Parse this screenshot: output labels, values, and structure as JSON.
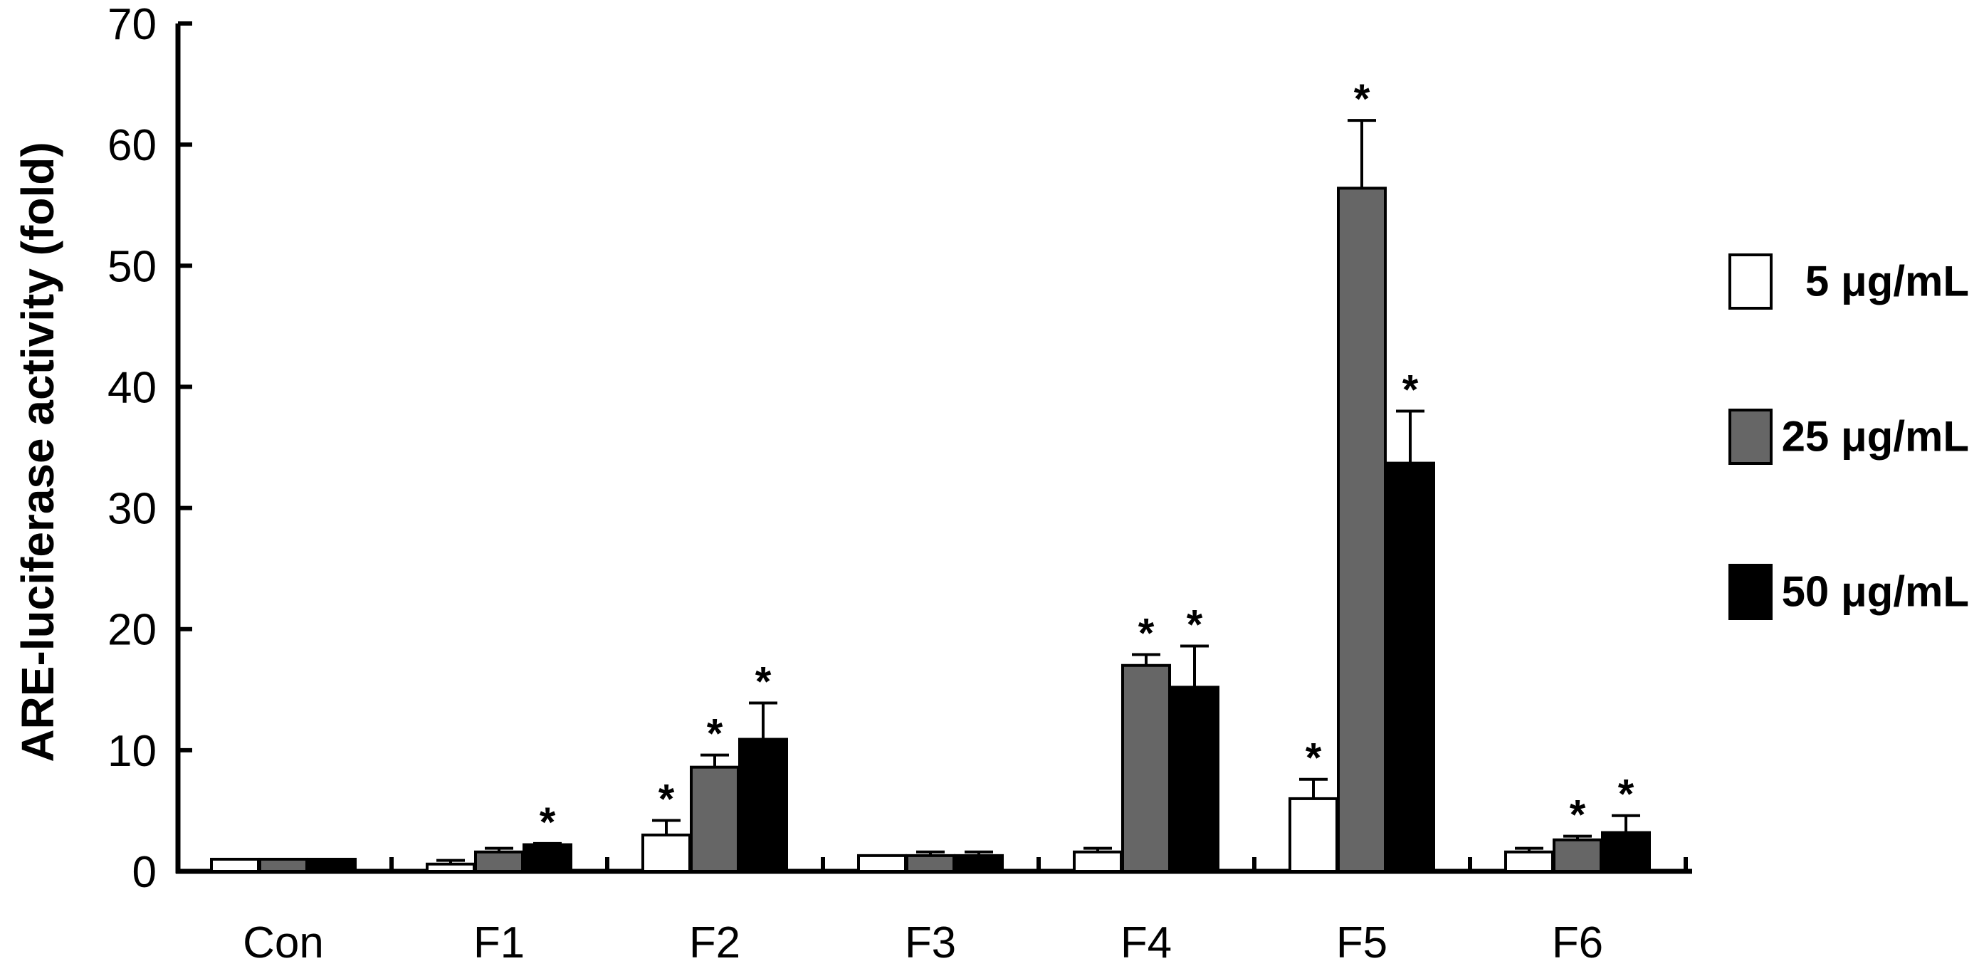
{
  "chart_data": {
    "type": "bar",
    "title": "",
    "xlabel": "",
    "ylabel": "ARE-luciferase activity (fold)",
    "ylim": [
      0,
      70
    ],
    "yticks": [
      0,
      10,
      20,
      30,
      40,
      50,
      60,
      70
    ],
    "categories": [
      "Con",
      "F1",
      "F2",
      "F3",
      "F4",
      "F5",
      "F6"
    ],
    "series": [
      {
        "name": "5 μg/mL",
        "color": "#ffffff",
        "values": [
          1.0,
          0.6,
          3.0,
          1.3,
          1.6,
          6.0,
          1.6
        ],
        "errors": [
          0,
          0.3,
          1.2,
          0,
          0.3,
          1.6,
          0.3
        ],
        "significant": [
          false,
          false,
          true,
          false,
          false,
          true,
          false
        ]
      },
      {
        "name": "25 μg/mL",
        "color": "#666666",
        "values": [
          1.0,
          1.6,
          8.6,
          1.3,
          17.0,
          56.4,
          2.6
        ],
        "errors": [
          0,
          0.3,
          1.0,
          0.3,
          0.9,
          5.6,
          0.3
        ],
        "significant": [
          false,
          false,
          true,
          false,
          true,
          true,
          true
        ]
      },
      {
        "name": "50 μg/mL",
        "color": "#000000",
        "values": [
          1.0,
          2.2,
          10.9,
          1.3,
          15.2,
          33.7,
          3.2
        ],
        "errors": [
          0,
          0.1,
          3.0,
          0.3,
          3.4,
          4.3,
          1.4
        ],
        "significant": [
          false,
          true,
          true,
          false,
          true,
          true,
          true
        ]
      }
    ],
    "significance_marker": "*",
    "legend_position": "right",
    "grid": false
  }
}
